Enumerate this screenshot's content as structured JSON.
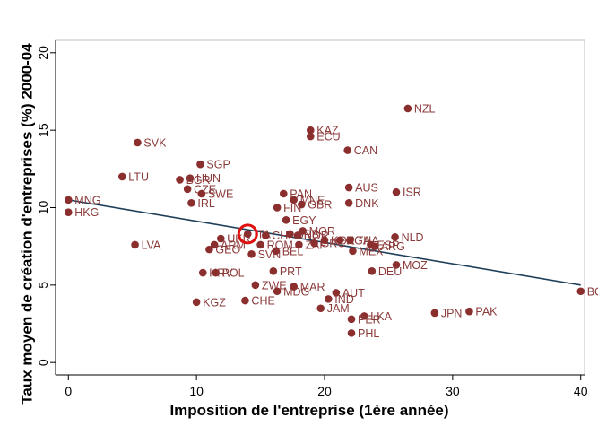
{
  "chart_data": {
    "type": "scatter",
    "xlabel": "Imposition de l'entreprise (1ère année)",
    "ylabel": "Taux moyen de création d'entreprises (%) 2000-04",
    "xlim": [
      -1,
      40.3
    ],
    "ylim": [
      -0.8,
      20.8
    ],
    "xticks": [
      0,
      10,
      20,
      30,
      40
    ],
    "yticks": [
      0,
      5,
      10,
      15,
      20
    ],
    "grid": false,
    "colors": {
      "point": "#8b2e2e",
      "label": "#8b3a3a",
      "fit_line": "#1e3f5a",
      "highlight": "#e01010",
      "axis": "#000000"
    },
    "fit_line": {
      "x": [
        0,
        40
      ],
      "y": [
        10.5,
        5.0
      ]
    },
    "highlight": {
      "label": "",
      "x": 14.0,
      "y": 8.3
    },
    "points": [
      {
        "label": "MNG",
        "x": 0.0,
        "y": 10.5
      },
      {
        "label": "HKG",
        "x": 0.0,
        "y": 9.7
      },
      {
        "label": "LTU",
        "x": 4.2,
        "y": 12.0
      },
      {
        "label": "SVK",
        "x": 5.4,
        "y": 14.2
      },
      {
        "label": "LVA",
        "x": 5.2,
        "y": 7.6
      },
      {
        "label": "SGP",
        "x": 10.3,
        "y": 12.8
      },
      {
        "label": "HUN",
        "x": 9.5,
        "y": 11.9
      },
      {
        "label": "BGR",
        "x": 8.7,
        "y": 11.8
      },
      {
        "label": "CZE",
        "x": 9.3,
        "y": 11.2
      },
      {
        "label": "SWE",
        "x": 10.4,
        "y": 10.9
      },
      {
        "label": "IRL",
        "x": 9.6,
        "y": 10.3
      },
      {
        "label": "UKR",
        "x": 11.9,
        "y": 8.0
      },
      {
        "label": "ARM",
        "x": 11.4,
        "y": 7.6
      },
      {
        "label": "GEO",
        "x": 11.0,
        "y": 7.3
      },
      {
        "label": "HRV",
        "x": 10.5,
        "y": 5.8
      },
      {
        "label": "POL",
        "x": 11.5,
        "y": 5.8
      },
      {
        "label": "KGZ",
        "x": 10.0,
        "y": 3.9
      },
      {
        "label": "ITA",
        "x": 14.0,
        "y": 8.3
      },
      {
        "label": "CHL",
        "x": 15.4,
        "y": 8.2
      },
      {
        "label": "ROM",
        "x": 15.0,
        "y": 7.6
      },
      {
        "label": "SVN",
        "x": 14.3,
        "y": 7.0
      },
      {
        "label": "BEL",
        "x": 16.2,
        "y": 7.2
      },
      {
        "label": "PRT",
        "x": 16.0,
        "y": 5.9
      },
      {
        "label": "CHE",
        "x": 13.8,
        "y": 4.0
      },
      {
        "label": "ZWE",
        "x": 14.6,
        "y": 5.0
      },
      {
        "label": "MDG",
        "x": 16.3,
        "y": 4.6
      },
      {
        "label": "MAR",
        "x": 17.6,
        "y": 4.9
      },
      {
        "label": "PAN",
        "x": 16.8,
        "y": 10.9
      },
      {
        "label": "FIN",
        "x": 16.3,
        "y": 10.0
      },
      {
        "label": "MNE",
        "x": 17.6,
        "y": 10.5
      },
      {
        "label": "GBR",
        "x": 18.2,
        "y": 10.2
      },
      {
        "label": "EGY",
        "x": 17.0,
        "y": 9.2
      },
      {
        "label": "MOR",
        "x": 18.3,
        "y": 8.5
      },
      {
        "label": "NOR",
        "x": 17.9,
        "y": 8.2
      },
      {
        "label": "SRB",
        "x": 17.3,
        "y": 8.3
      },
      {
        "label": "ZAF",
        "x": 18.0,
        "y": 7.6
      },
      {
        "label": "GRC",
        "x": 19.2,
        "y": 7.7
      },
      {
        "label": "KOR",
        "x": 20.0,
        "y": 7.9
      },
      {
        "label": "NGA",
        "x": 21.2,
        "y": 7.9
      },
      {
        "label": "THA",
        "x": 22.0,
        "y": 7.9
      },
      {
        "label": "ESP",
        "x": 23.6,
        "y": 7.6
      },
      {
        "label": "ARG",
        "x": 23.9,
        "y": 7.5
      },
      {
        "label": "MEX",
        "x": 22.2,
        "y": 7.2
      },
      {
        "label": "NLD",
        "x": 25.5,
        "y": 8.1
      },
      {
        "label": "MOZ",
        "x": 25.6,
        "y": 6.3
      },
      {
        "label": "DEU",
        "x": 23.7,
        "y": 5.9
      },
      {
        "label": "AUT",
        "x": 20.9,
        "y": 4.5
      },
      {
        "label": "IND",
        "x": 20.3,
        "y": 4.1
      },
      {
        "label": "JAM",
        "x": 19.7,
        "y": 3.5
      },
      {
        "label": "LKA",
        "x": 23.1,
        "y": 3.0
      },
      {
        "label": "PER",
        "x": 22.1,
        "y": 2.8
      },
      {
        "label": "PHL",
        "x": 22.1,
        "y": 1.9
      },
      {
        "label": "JPN",
        "x": 28.6,
        "y": 3.2
      },
      {
        "label": "PAK",
        "x": 31.3,
        "y": 3.3
      },
      {
        "label": "BOL",
        "x": 40.0,
        "y": 4.6
      },
      {
        "label": "KAZ",
        "x": 18.9,
        "y": 15.0
      },
      {
        "label": "ECU",
        "x": 18.9,
        "y": 14.6
      },
      {
        "label": "CAN",
        "x": 21.8,
        "y": 13.7
      },
      {
        "label": "NZL",
        "x": 26.5,
        "y": 16.4
      },
      {
        "label": "AUS",
        "x": 21.9,
        "y": 11.3
      },
      {
        "label": "ISR",
        "x": 25.6,
        "y": 11.0
      },
      {
        "label": "DNK",
        "x": 21.9,
        "y": 10.3
      }
    ]
  }
}
